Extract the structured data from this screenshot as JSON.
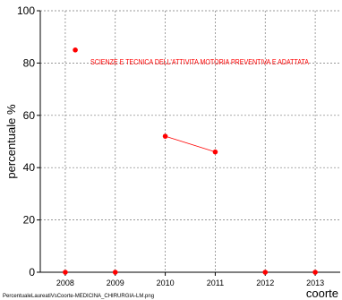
{
  "chart_data": {
    "type": "scatter",
    "ylabel": "percentuale %",
    "xlabel": "coorte",
    "xlim": [
      2007.5,
      2013.5
    ],
    "ylim": [
      0,
      100
    ],
    "x_ticks": [
      2008,
      2009,
      2010,
      2011,
      2012,
      2013
    ],
    "y_ticks": [
      0,
      20,
      40,
      60,
      80,
      100
    ],
    "grid": true,
    "legend": {
      "placement": "top",
      "entries": [
        {
          "label": "SCIENZE E TECNICA DELL'ATTIVITA MOTORIA PREVENTIVA E ADATTATA",
          "color": "#ff0000",
          "marker_x": 2008.2,
          "marker_y": 85
        }
      ]
    },
    "series": [
      {
        "color": "#ff0000",
        "points": [
          {
            "x": 2008,
            "y": 0
          },
          {
            "x": 2009,
            "y": 0
          },
          {
            "x": 2010,
            "y": 52
          },
          {
            "x": 2011,
            "y": 46
          },
          {
            "x": 2012,
            "y": 0
          },
          {
            "x": 2013,
            "y": 0
          }
        ],
        "connected_segments": [
          [
            2,
            3
          ]
        ]
      }
    ],
    "footer": "PercentualeLaureatiVsCoorte-MEDICINA_CHIRURGIA-LM.png"
  }
}
